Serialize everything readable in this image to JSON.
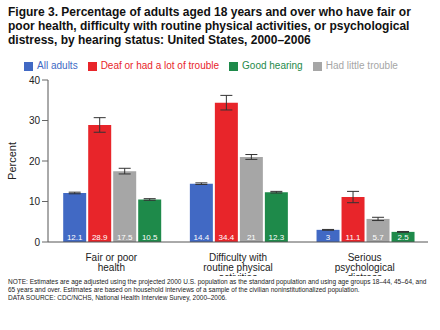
{
  "chart_data": {
    "type": "bar",
    "title": "Figure 3. Percentage of adults aged 18 years and over who have fair or poor health, difficulty with routine physical activities, or psychological distress, by hearing status: United States, 2000–2006",
    "y_label": "Percent",
    "categories": [
      "Fair or poor health",
      "Difficulty with routine physical activities",
      "Serious psychological distress"
    ],
    "series": [
      {
        "name": "All adults",
        "color": "#4169c4",
        "values": [
          12.1,
          14.4,
          3.0
        ],
        "errors": [
          0.2,
          0.2,
          0.1
        ]
      },
      {
        "name": "Deaf or had a lot of trouble",
        "color": "#e8252a",
        "values": [
          28.9,
          34.4,
          11.1
        ],
        "errors": [
          1.8,
          1.8,
          1.4
        ]
      },
      {
        "name": "Had little trouble",
        "color": "#a6a6a6",
        "values": [
          17.5,
          21.0,
          5.7
        ],
        "errors": [
          0.7,
          0.6,
          0.4
        ]
      },
      {
        "name": "Good hearing",
        "color": "#1e8a4a",
        "values": [
          10.5,
          12.3,
          2.5
        ],
        "errors": [
          0.2,
          0.2,
          0.1
        ]
      }
    ],
    "ylim": [
      0,
      40
    ],
    "yticks": [
      0,
      10,
      20,
      30,
      40
    ],
    "grid": false,
    "legend": "top",
    "data_labels": true,
    "footnotes": [
      "NOTE: Estimates are age adjusted using the projected 2000 U.S. population as the standard population and using age groups 18–44, 45–64, and 65 years and over. Estimates are based on household interviews of a sample of the civilian noninstitutionalized population.",
      "DATA SOURCE: CDC/NCHS, National Health Interview Survey, 2000–2006."
    ]
  }
}
